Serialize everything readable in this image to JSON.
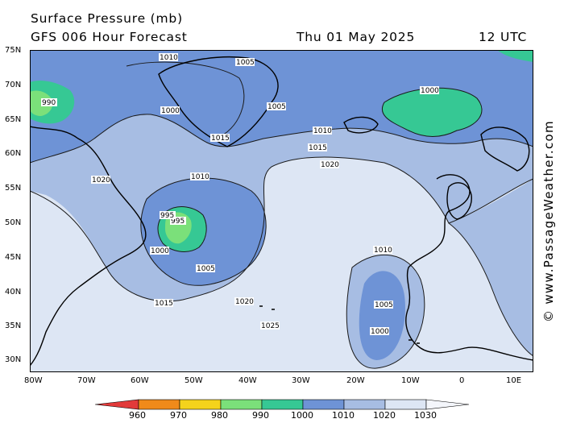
{
  "header": {
    "title": "Surface Pressure (mb)",
    "forecast": "GFS 006 Hour Forecast",
    "date": "Thu 01 May 2025",
    "time": "12 UTC"
  },
  "credit": "© www.PassageWeather.com",
  "map": {
    "lat_labels": [
      "75N",
      "70N",
      "65N",
      "60N",
      "55N",
      "50N",
      "45N",
      "40N",
      "35N",
      "30N"
    ],
    "lon_labels": [
      "80W",
      "70W",
      "60W",
      "50W",
      "40W",
      "30W",
      "20W",
      "10W",
      "0",
      "10E"
    ],
    "contour_labels": [
      "1010",
      "1005",
      "1000",
      "995",
      "990",
      "1015",
      "1020",
      "1025",
      "1005",
      "1010",
      "1015",
      "1020",
      "1000",
      "1010",
      "1015",
      "1020",
      "1005",
      "1000",
      "995",
      "1000",
      "1005",
      "1010"
    ]
  },
  "legend": {
    "values": [
      "960",
      "970",
      "980",
      "990",
      "1000",
      "1010",
      "1020",
      "1030"
    ],
    "colors": [
      "#e23a3a",
      "#f08a1a",
      "#f4d31c",
      "#7be07a",
      "#36c894",
      "#6e93d6",
      "#a7bde3",
      "#dde6f4",
      "#f4f6fb"
    ]
  }
}
